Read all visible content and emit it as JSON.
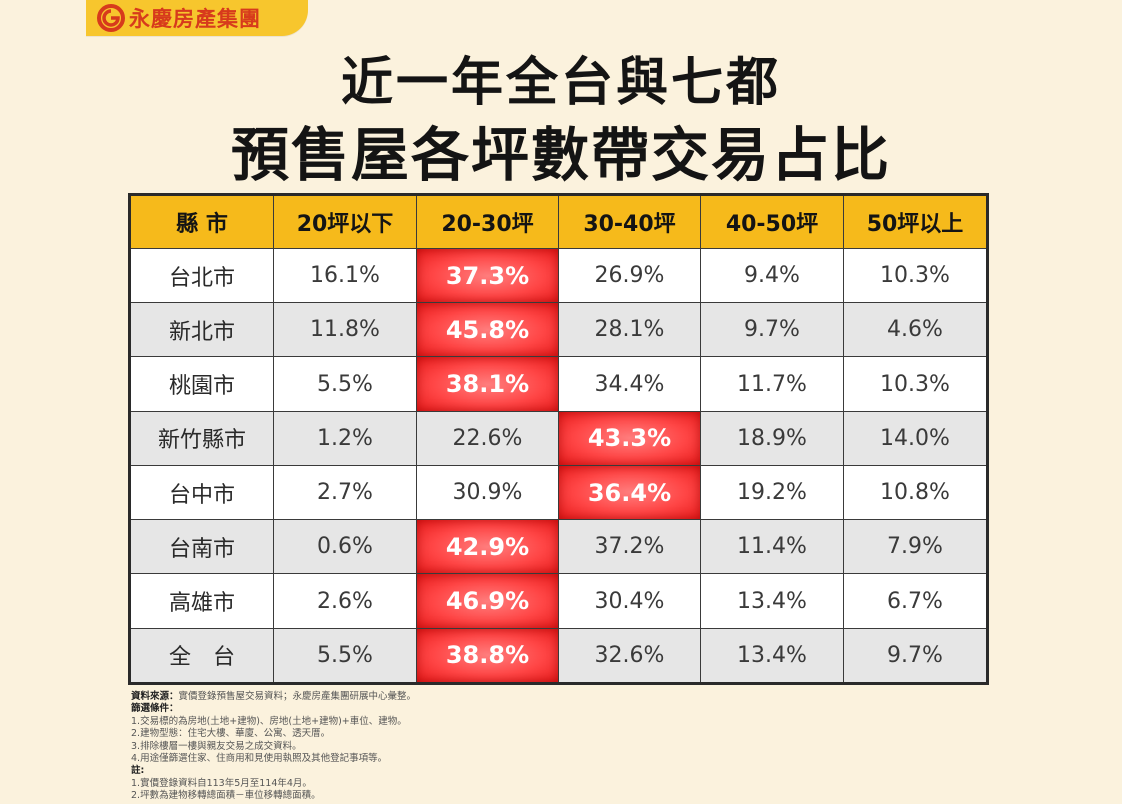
{
  "brand": {
    "name": "永慶房產集團"
  },
  "title": {
    "line1": "近一年全台與七都",
    "line2": "預售屋各坪數帶交易占比"
  },
  "chart_data": {
    "type": "table",
    "columns": [
      "縣 市",
      "20坪以下",
      "20-30坪",
      "30-40坪",
      "40-50坪",
      "50坪以上"
    ],
    "rows": [
      {
        "name": "台北市",
        "values": [
          "16.1%",
          "37.3%",
          "26.9%",
          "9.4%",
          "10.3%"
        ],
        "highlight": 1
      },
      {
        "name": "新北市",
        "values": [
          "11.8%",
          "45.8%",
          "28.1%",
          "9.7%",
          "4.6%"
        ],
        "highlight": 1
      },
      {
        "name": "桃園市",
        "values": [
          "5.5%",
          "38.1%",
          "34.4%",
          "11.7%",
          "10.3%"
        ],
        "highlight": 1
      },
      {
        "name": "新竹縣市",
        "values": [
          "1.2%",
          "22.6%",
          "43.3%",
          "18.9%",
          "14.0%"
        ],
        "highlight": 2
      },
      {
        "name": "台中市",
        "values": [
          "2.7%",
          "30.9%",
          "36.4%",
          "19.2%",
          "10.8%"
        ],
        "highlight": 2
      },
      {
        "name": "台南市",
        "values": [
          "0.6%",
          "42.9%",
          "37.2%",
          "11.4%",
          "7.9%"
        ],
        "highlight": 1
      },
      {
        "name": "高雄市",
        "values": [
          "2.6%",
          "46.9%",
          "30.4%",
          "13.4%",
          "6.7%"
        ],
        "highlight": 1
      },
      {
        "name": "全　台",
        "values": [
          "5.5%",
          "38.8%",
          "32.6%",
          "13.4%",
          "9.7%"
        ],
        "highlight": 1
      }
    ],
    "highlight_color": "#ff3b3b",
    "header_color": "#f6ba1b"
  },
  "notes": {
    "source_label": "資料來源：",
    "source_text": "實價登錄預售屋交易資料；永慶房產集團研展中心彙整。",
    "filter_label": "篩選條件：",
    "filter_items": [
      "1.交易標的為房地(土地+建物)、房地(土地+建物)+車位、建物。",
      "2.建物型態：住宅大樓、華廈、公寓、透天厝。",
      "3.排除樓層一樓與親友交易之成交資料。",
      "4.用途僅篩選住家、住商用和見使用執照及其他登記事項等。"
    ],
    "notice_label": "註:",
    "notice_items": [
      "1.實價登錄資料自113年5月至114年4月。",
      "2.坪數為建物移轉總面積－車位移轉總面積。"
    ]
  }
}
